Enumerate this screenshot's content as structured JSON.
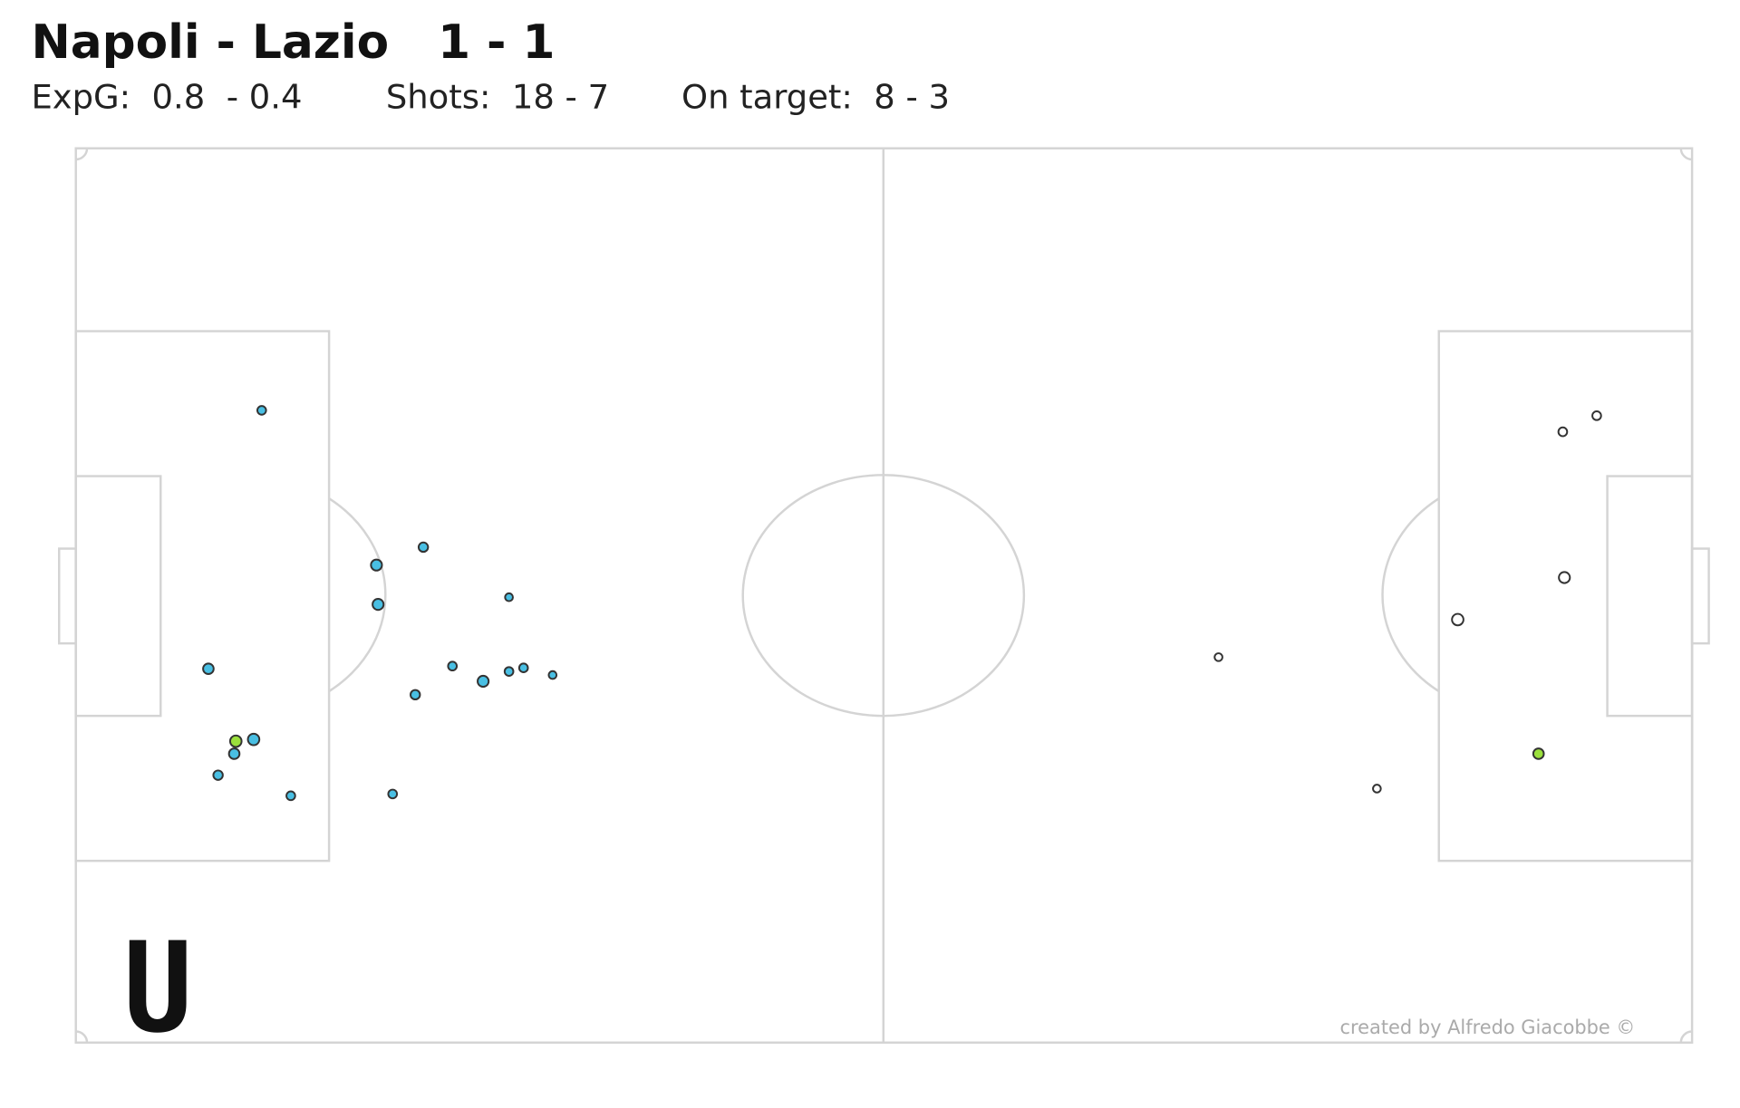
{
  "chart_data": {
    "type": "scatter",
    "title": "Napoli - Lazio   1 - 1",
    "stats": [
      "ExpG:  0.8  - 0.4",
      "Shots:  18 - 7",
      "On target:  8 - 3"
    ],
    "credit": "created by Alfredo Giacobbe ©",
    "xlim": [
      0,
      100
    ],
    "ylim": [
      100,
      0
    ],
    "series": [
      {
        "color": "#49bfe3",
        "x": [
          11.5,
          21.5,
          18.6,
          18.7,
          26.8,
          8.2,
          23.3,
          25.2,
          26.8,
          27.7,
          29.5,
          21.0,
          9.9,
          11.0,
          9.8,
          8.8,
          13.3,
          19.6
        ],
        "values": [
          29.3,
          44.6,
          46.6,
          51.0,
          50.2,
          58.2,
          57.9,
          59.6,
          58.5,
          58.1,
          58.9,
          61.1,
          66.3,
          66.1,
          67.7,
          70.1,
          72.4,
          72.2
        ],
        "sizes": [
          0.02,
          0.03,
          0.06,
          0.06,
          0.01,
          0.05,
          0.02,
          0.06,
          0.02,
          0.02,
          0.01,
          0.03,
          0.07,
          0.07,
          0.05,
          0.03,
          0.02,
          0.02
        ],
        "colors": [
          "#49bfe3",
          "#49bfe3",
          "#49bfe3",
          "#49bfe3",
          "#49bfe3",
          "#49bfe3",
          "#49bfe3",
          "#49bfe3",
          "#49bfe3",
          "#49bfe3",
          "#49bfe3",
          "#49bfe3",
          "#9be03c",
          "#49bfe3",
          "#49bfe3",
          "#49bfe3",
          "#49bfe3",
          "#49bfe3"
        ]
      },
      {
        "color": "#ffffff",
        "x": [
          94.1,
          92.0,
          92.1,
          85.5,
          70.7,
          90.5,
          80.5
        ],
        "values": [
          29.9,
          31.7,
          48.0,
          52.7,
          56.9,
          67.7,
          71.6
        ],
        "sizes": [
          0.02,
          0.02,
          0.06,
          0.07,
          0.01,
          0.05,
          0.01
        ],
        "colors": [
          "#ffffff",
          "#ffffff",
          "#ffffff",
          "#ffffff",
          "#ffffff",
          "#9be03c",
          "#ffffff"
        ]
      }
    ]
  }
}
